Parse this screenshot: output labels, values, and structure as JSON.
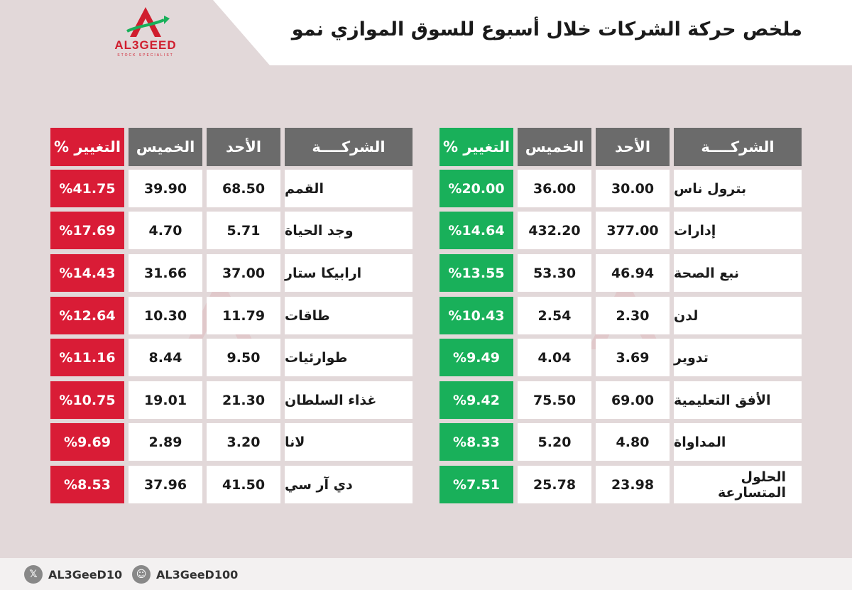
{
  "header": {
    "title": "ملخص حركة الشركات خلال أسبوع للسوق الموازي نمو",
    "logo_text": "AL3GEED",
    "logo_sub": "STOCK SPECIALIST"
  },
  "colors": {
    "gainers": "#19b05a",
    "losers": "#d91c36",
    "header": "#6b6b6b"
  },
  "columns": {
    "company": "الشركــــة",
    "sunday": "الأحد",
    "thursday": "الخميس",
    "change": "التغيير %"
  },
  "gainers": [
    {
      "company": "بترول ناس",
      "sunday": "30.00",
      "thursday": "36.00",
      "change": "%20.00"
    },
    {
      "company": "إدارات",
      "sunday": "377.00",
      "thursday": "432.20",
      "change": "%14.64"
    },
    {
      "company": "نبع الصحة",
      "sunday": "46.94",
      "thursday": "53.30",
      "change": "%13.55"
    },
    {
      "company": "لدن",
      "sunday": "2.30",
      "thursday": "2.54",
      "change": "%10.43"
    },
    {
      "company": "تدوير",
      "sunday": "3.69",
      "thursday": "4.04",
      "change": "%9.49"
    },
    {
      "company": "الأفق التعليمية",
      "sunday": "69.00",
      "thursday": "75.50",
      "change": "%9.42"
    },
    {
      "company": "المداواة",
      "sunday": "4.80",
      "thursday": "5.20",
      "change": "%8.33"
    },
    {
      "company": "الحلول المتسارعة",
      "sunday": "23.98",
      "thursday": "25.78",
      "change": "%7.51"
    }
  ],
  "losers": [
    {
      "company": "القمم",
      "sunday": "68.50",
      "thursday": "39.90",
      "change": "%41.75"
    },
    {
      "company": "وجد الحياة",
      "sunday": "5.71",
      "thursday": "4.70",
      "change": "%17.69"
    },
    {
      "company": "ارابيكا ستار",
      "sunday": "37.00",
      "thursday": "31.66",
      "change": "%14.43"
    },
    {
      "company": "طاقات",
      "sunday": "11.79",
      "thursday": "10.30",
      "change": "%12.64"
    },
    {
      "company": "طوارئيات",
      "sunday": "9.50",
      "thursday": "8.44",
      "change": "%11.16"
    },
    {
      "company": "غذاء السلطان",
      "sunday": "21.30",
      "thursday": "19.01",
      "change": "%10.75"
    },
    {
      "company": "لانا",
      "sunday": "3.20",
      "thursday": "2.89",
      "change": "%9.69"
    },
    {
      "company": "دي آر سي",
      "sunday": "41.50",
      "thursday": "37.96",
      "change": "%8.53"
    }
  ],
  "footer": {
    "x_handle": "AL3GeeD10",
    "snapchat_handle": "AL3GeeD100",
    "x_icon": "x-icon",
    "snapchat_icon": "snapchat-icon"
  }
}
